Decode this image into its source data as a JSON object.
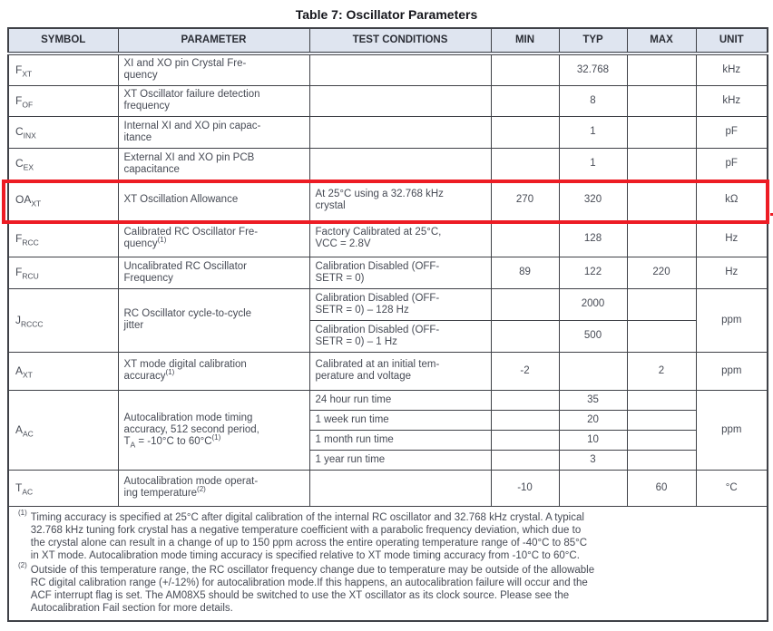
{
  "title": "Table 7: Oscillator Parameters",
  "colors": {
    "header_bg": "#dfe5f0",
    "border": "#3f4147",
    "text": "#474b55",
    "header_text": "#2b2e36",
    "highlight": "#ed1c24"
  },
  "table": {
    "headers": [
      "SYMBOL",
      "PARAMETER",
      "TEST CONDITIONS",
      "MIN",
      "TYP",
      "MAX",
      "UNIT"
    ],
    "rows": [
      {
        "symbol": [
          {
            "t": "F"
          },
          {
            "sub": "XT"
          }
        ],
        "parameter": [
          {
            "t": "XI and XO pin Crystal Fre-\nquency"
          }
        ],
        "unit": "kHz",
        "highlight": false,
        "conds": [
          {
            "text": "",
            "min": "",
            "typ": "32.768",
            "max": ""
          }
        ]
      },
      {
        "symbol": [
          {
            "t": "F"
          },
          {
            "sub": "OF"
          }
        ],
        "parameter": [
          {
            "t": "XT Oscillator failure detection\nfrequency"
          }
        ],
        "unit": "kHz",
        "highlight": false,
        "conds": [
          {
            "text": "",
            "min": "",
            "typ": "8",
            "max": ""
          }
        ]
      },
      {
        "symbol": [
          {
            "t": "C"
          },
          {
            "sub": "INX"
          }
        ],
        "parameter": [
          {
            "t": "Internal XI and XO pin capac-\nitance"
          }
        ],
        "unit": "pF",
        "highlight": false,
        "conds": [
          {
            "text": "",
            "min": "",
            "typ": "1",
            "max": ""
          }
        ]
      },
      {
        "symbol": [
          {
            "t": "C"
          },
          {
            "sub": "EX"
          }
        ],
        "parameter": [
          {
            "t": "External XI and XO pin PCB\ncapacitance"
          }
        ],
        "unit": "pF",
        "highlight": false,
        "conds": [
          {
            "text": "",
            "min": "",
            "typ": "1",
            "max": ""
          }
        ]
      },
      {
        "symbol": [
          {
            "t": "OA"
          },
          {
            "sub": "XT"
          }
        ],
        "parameter": [
          {
            "t": "XT Oscillation Allowance"
          }
        ],
        "unit": "kΩ",
        "highlight": true,
        "conds": [
          {
            "text": "At 25°C using a 32.768 kHz\ncrystal",
            "min": "270",
            "typ": "320",
            "max": ""
          }
        ]
      },
      {
        "symbol": [
          {
            "t": "F"
          },
          {
            "sub": "RCC"
          }
        ],
        "parameter": [
          {
            "t": "Calibrated RC Oscillator Fre-\nquency"
          },
          {
            "sup": "(1)"
          }
        ],
        "unit": "Hz",
        "highlight": false,
        "conds": [
          {
            "text": "Factory Calibrated at 25°C,\nVCC = 2.8V",
            "min": "",
            "typ": "128",
            "max": ""
          }
        ]
      },
      {
        "symbol": [
          {
            "t": "F"
          },
          {
            "sub": "RCU"
          }
        ],
        "parameter": [
          {
            "t": "Uncalibrated RC Oscillator\nFrequency"
          }
        ],
        "unit": "Hz",
        "highlight": false,
        "conds": [
          {
            "text": "Calibration Disabled (OFF-\nSETR = 0)",
            "min": "89",
            "typ": "122",
            "max": "220"
          }
        ]
      },
      {
        "symbol": [
          {
            "t": "J"
          },
          {
            "sub": "RCCC"
          }
        ],
        "parameter": [
          {
            "t": "RC Oscillator cycle-to-cycle\njitter"
          }
        ],
        "unit": "ppm",
        "highlight": false,
        "conds": [
          {
            "text": "Calibration Disabled (OFF-\nSETR = 0) – 128 Hz",
            "min": "",
            "typ": "2000",
            "max": ""
          },
          {
            "text": "Calibration Disabled (OFF-\nSETR = 0) – 1 Hz",
            "min": "",
            "typ": "500",
            "max": ""
          }
        ]
      },
      {
        "symbol": [
          {
            "t": "A"
          },
          {
            "sub": "XT"
          }
        ],
        "parameter": [
          {
            "t": "XT mode digital calibration\naccuracy"
          },
          {
            "sup": "(1)"
          }
        ],
        "unit": "ppm",
        "highlight": false,
        "conds": [
          {
            "text": "Calibrated at an initial tem-\nperature and voltage",
            "min": "-2",
            "typ": "",
            "max": "2"
          }
        ]
      },
      {
        "symbol": [
          {
            "t": "A"
          },
          {
            "sub": "AC"
          }
        ],
        "parameter": [
          {
            "t": "Autocalibration mode timing\naccuracy, 512 second period,\nT"
          },
          {
            "sub": "A"
          },
          {
            "t": " = -10°C to 60°C"
          },
          {
            "sup": "(1)"
          }
        ],
        "unit": "ppm",
        "highlight": false,
        "conds": [
          {
            "text": "24 hour run time",
            "min": "",
            "typ": "35",
            "max": ""
          },
          {
            "text": "1 week run time",
            "min": "",
            "typ": "20",
            "max": ""
          },
          {
            "text": "1 month run time",
            "min": "",
            "typ": "10",
            "max": ""
          },
          {
            "text": "1 year run time",
            "min": "",
            "typ": "3",
            "max": ""
          }
        ]
      },
      {
        "symbol": [
          {
            "t": "T"
          },
          {
            "sub": "AC"
          }
        ],
        "parameter": [
          {
            "t": "Autocalibration mode operat-\ning temperature"
          },
          {
            "sup": "(2)"
          }
        ],
        "unit": "°C",
        "highlight": false,
        "conds": [
          {
            "text": "",
            "min": "-10",
            "typ": "",
            "max": "60"
          }
        ]
      }
    ]
  },
  "footnotes": [
    {
      "marker": "(1)",
      "text": "Timing accuracy is specified at 25°C after digital calibration of the internal RC oscillator and 32.768 kHz crystal. A typical\n32.768 kHz tuning fork crystal has a negative temperature coefficient with a parabolic frequency deviation, which due to\nthe crystal alone can result in a change of up to 150 ppm across the entire operating temperature range of -40°C to 85°C\nin XT mode. Autocalibration mode timing accuracy is specified relative to XT mode timing accuracy from -10°C to 60°C."
    },
    {
      "marker": "(2)",
      "text": "Outside of this temperature range, the RC oscillator frequency change due to temperature may be outside of the allowable\nRC digital calibration range (+/-12%) for autocalibration mode.If this happens, an autocalibration failure will occur and the\nACF interrupt flag is set. The AM08X5 should be switched to use the XT oscillator as its clock source. Please see the\nAutocalibration Fail section for more details."
    }
  ],
  "annotation": {
    "type": "highlight-rectangle",
    "target_row_symbol": "OAXT"
  }
}
